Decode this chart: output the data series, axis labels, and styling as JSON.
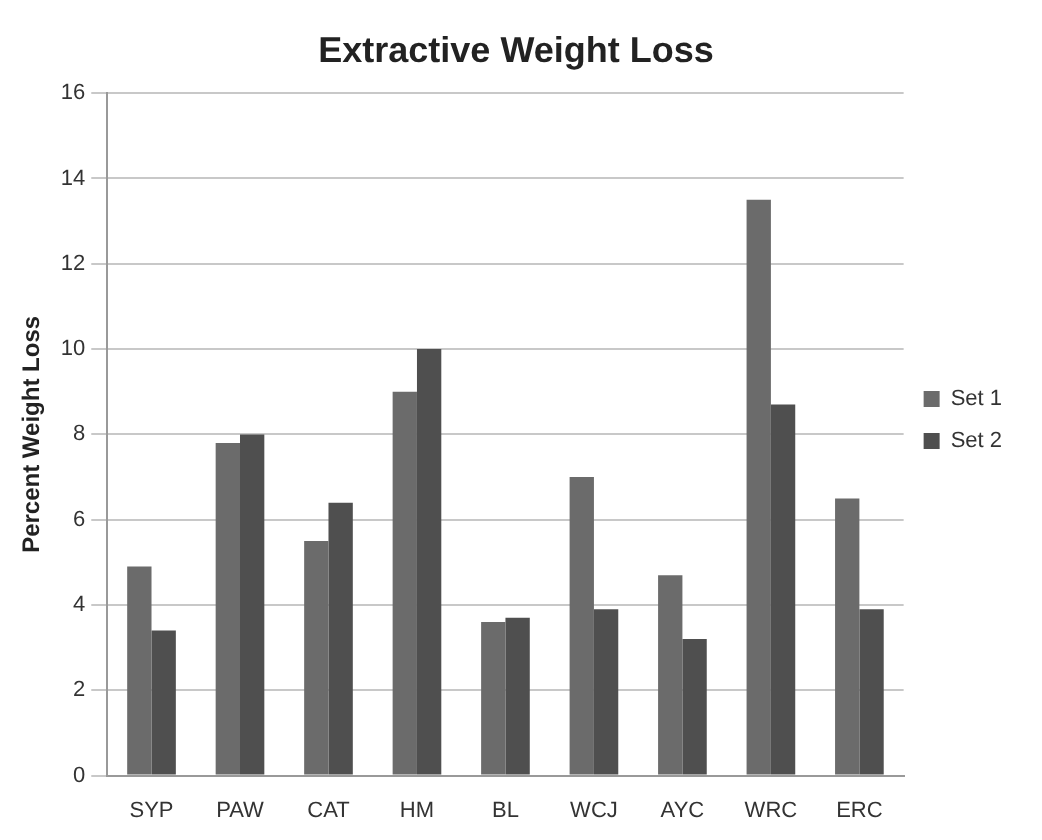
{
  "chart_data": {
    "type": "bar",
    "title": "Extractive Weight Loss",
    "ylabel": "Percent Weight Loss",
    "categories": [
      "SYP",
      "PAW",
      "CAT",
      "HM",
      "BL",
      "WCJ",
      "AYC",
      "WRC",
      "ERC"
    ],
    "series": [
      {
        "name": "Set 1",
        "color": "#6b6b6b",
        "values": [
          4.9,
          7.8,
          5.5,
          9.0,
          3.6,
          7.0,
          4.7,
          13.5,
          6.5
        ]
      },
      {
        "name": "Set 2",
        "color": "#4f4f4f",
        "values": [
          3.4,
          8.0,
          6.4,
          10.0,
          3.7,
          3.9,
          3.2,
          8.7,
          3.9
        ]
      }
    ],
    "ylim": [
      0,
      16
    ],
    "yticks": [
      0,
      2,
      4,
      6,
      8,
      10,
      12,
      14,
      16
    ],
    "grid": "y",
    "legend": "right"
  }
}
